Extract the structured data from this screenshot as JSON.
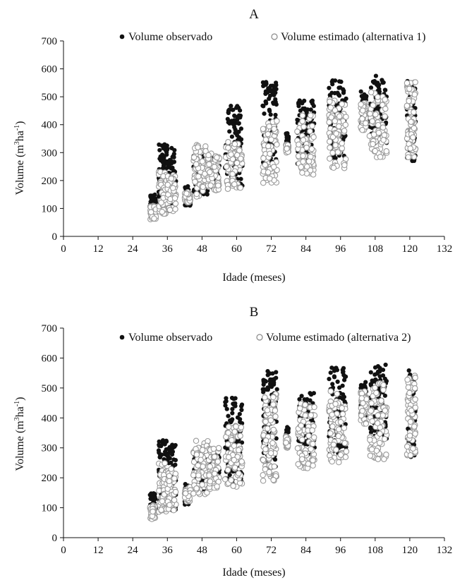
{
  "chart_data": [
    {
      "type": "scatter",
      "panel_label": "A",
      "xlabel": "Idade (meses)",
      "ylabel_main": "Volume (m",
      "ylabel_sup1": "3",
      "ylabel_mid": "ha",
      "ylabel_sup2": "-1",
      "ylabel_end": ")",
      "xlim": [
        0,
        132
      ],
      "ylim": [
        0,
        700
      ],
      "xticks": [
        "0",
        "12",
        "24",
        "36",
        "48",
        "60",
        "72",
        "84",
        "96",
        "108",
        "120",
        "132"
      ],
      "yticks": [
        "0",
        "100",
        "200",
        "300",
        "400",
        "500",
        "600",
        "700"
      ],
      "legend_position": "top",
      "series": [
        {
          "name": "Volume observado",
          "marker": "filled-circle",
          "color": "#111111",
          "clusters": [
            {
              "x": [
                30,
                32
              ],
              "y": [
                80,
                150
              ]
            },
            {
              "x": [
                33,
                36
              ],
              "y": [
                100,
                330
              ]
            },
            {
              "x": [
                36,
                39
              ],
              "y": [
                90,
                320
              ]
            },
            {
              "x": [
                42,
                44
              ],
              "y": [
                110,
                180
              ]
            },
            {
              "x": [
                45,
                50
              ],
              "y": [
                150,
                300
              ]
            },
            {
              "x": [
                50,
                54
              ],
              "y": [
                170,
                290
              ]
            },
            {
              "x": [
                56,
                62
              ],
              "y": [
                180,
                470
              ]
            },
            {
              "x": [
                69,
                74
              ],
              "y": [
                230,
                560
              ]
            },
            {
              "x": [
                77,
                78
              ],
              "y": [
                310,
                370
              ]
            },
            {
              "x": [
                81,
                87
              ],
              "y": [
                260,
                490
              ]
            },
            {
              "x": [
                92,
                98
              ],
              "y": [
                280,
                570
              ]
            },
            {
              "x": [
                103,
                105
              ],
              "y": [
                400,
                520
              ]
            },
            {
              "x": [
                106,
                112
              ],
              "y": [
                330,
                580
              ]
            },
            {
              "x": [
                119,
                122
              ],
              "y": [
                270,
                560
              ]
            }
          ]
        },
        {
          "name": "Volume estimado (alternativa 1)",
          "marker": "open-circle",
          "color": "#9a9a9a",
          "clusters": [
            {
              "x": [
                30,
                32
              ],
              "y": [
                60,
                110
              ]
            },
            {
              "x": [
                33,
                36
              ],
              "y": [
                80,
                250
              ]
            },
            {
              "x": [
                36,
                39
              ],
              "y": [
                90,
                220
              ]
            },
            {
              "x": [
                42,
                44
              ],
              "y": [
                120,
                160
              ]
            },
            {
              "x": [
                45,
                50
              ],
              "y": [
                140,
                330
              ]
            },
            {
              "x": [
                50,
                54
              ],
              "y": [
                160,
                300
              ]
            },
            {
              "x": [
                56,
                62
              ],
              "y": [
                170,
                340
              ]
            },
            {
              "x": [
                69,
                74
              ],
              "y": [
                190,
                420
              ]
            },
            {
              "x": [
                77,
                78
              ],
              "y": [
                300,
                330
              ]
            },
            {
              "x": [
                81,
                87
              ],
              "y": [
                220,
                440
              ]
            },
            {
              "x": [
                92,
                98
              ],
              "y": [
                240,
                490
              ]
            },
            {
              "x": [
                103,
                105
              ],
              "y": [
                380,
                480
              ]
            },
            {
              "x": [
                106,
                112
              ],
              "y": [
                280,
                520
              ]
            },
            {
              "x": [
                119,
                122
              ],
              "y": [
                280,
                560
              ]
            }
          ]
        }
      ]
    },
    {
      "type": "scatter",
      "panel_label": "B",
      "xlabel": "Idade (meses)",
      "ylabel_main": "Volume (m",
      "ylabel_sup1": "3",
      "ylabel_mid": "ha",
      "ylabel_sup2": "-1",
      "ylabel_end": ")",
      "xlim": [
        0,
        132
      ],
      "ylim": [
        0,
        700
      ],
      "xticks": [
        "0",
        "12",
        "24",
        "36",
        "48",
        "60",
        "72",
        "84",
        "96",
        "108",
        "120",
        "132"
      ],
      "yticks": [
        "0",
        "100",
        "200",
        "300",
        "400",
        "500",
        "600",
        "700"
      ],
      "legend_position": "top",
      "series": [
        {
          "name": "Volume observado",
          "marker": "filled-circle",
          "color": "#111111",
          "clusters": [
            {
              "x": [
                30,
                32
              ],
              "y": [
                80,
                150
              ]
            },
            {
              "x": [
                33,
                36
              ],
              "y": [
                100,
                330
              ]
            },
            {
              "x": [
                36,
                39
              ],
              "y": [
                90,
                320
              ]
            },
            {
              "x": [
                42,
                44
              ],
              "y": [
                110,
                180
              ]
            },
            {
              "x": [
                45,
                50
              ],
              "y": [
                150,
                300
              ]
            },
            {
              "x": [
                50,
                54
              ],
              "y": [
                170,
                290
              ]
            },
            {
              "x": [
                56,
                62
              ],
              "y": [
                180,
                470
              ]
            },
            {
              "x": [
                69,
                74
              ],
              "y": [
                230,
                560
              ]
            },
            {
              "x": [
                77,
                78
              ],
              "y": [
                310,
                370
              ]
            },
            {
              "x": [
                81,
                87
              ],
              "y": [
                260,
                490
              ]
            },
            {
              "x": [
                92,
                98
              ],
              "y": [
                280,
                570
              ]
            },
            {
              "x": [
                103,
                105
              ],
              "y": [
                400,
                520
              ]
            },
            {
              "x": [
                106,
                112
              ],
              "y": [
                330,
                580
              ]
            },
            {
              "x": [
                119,
                122
              ],
              "y": [
                270,
                560
              ]
            }
          ]
        },
        {
          "name": "Volume estimado (alternativa 2)",
          "marker": "open-circle",
          "color": "#9a9a9a",
          "clusters": [
            {
              "x": [
                30,
                32
              ],
              "y": [
                60,
                110
              ]
            },
            {
              "x": [
                33,
                36
              ],
              "y": [
                80,
                250
              ]
            },
            {
              "x": [
                36,
                39
              ],
              "y": [
                90,
                230
              ]
            },
            {
              "x": [
                42,
                44
              ],
              "y": [
                120,
                170
              ]
            },
            {
              "x": [
                45,
                50
              ],
              "y": [
                140,
                330
              ]
            },
            {
              "x": [
                50,
                54
              ],
              "y": [
                160,
                300
              ]
            },
            {
              "x": [
                56,
                62
              ],
              "y": [
                170,
                380
              ]
            },
            {
              "x": [
                69,
                74
              ],
              "y": [
                190,
                490
              ]
            },
            {
              "x": [
                77,
                78
              ],
              "y": [
                300,
                340
              ]
            },
            {
              "x": [
                81,
                87
              ],
              "y": [
                230,
                450
              ]
            },
            {
              "x": [
                92,
                98
              ],
              "y": [
                250,
                490
              ]
            },
            {
              "x": [
                103,
                105
              ],
              "y": [
                380,
                490
              ]
            },
            {
              "x": [
                106,
                112
              ],
              "y": [
                260,
                520
              ]
            },
            {
              "x": [
                119,
                122
              ],
              "y": [
                270,
                550
              ]
            }
          ]
        }
      ]
    }
  ]
}
